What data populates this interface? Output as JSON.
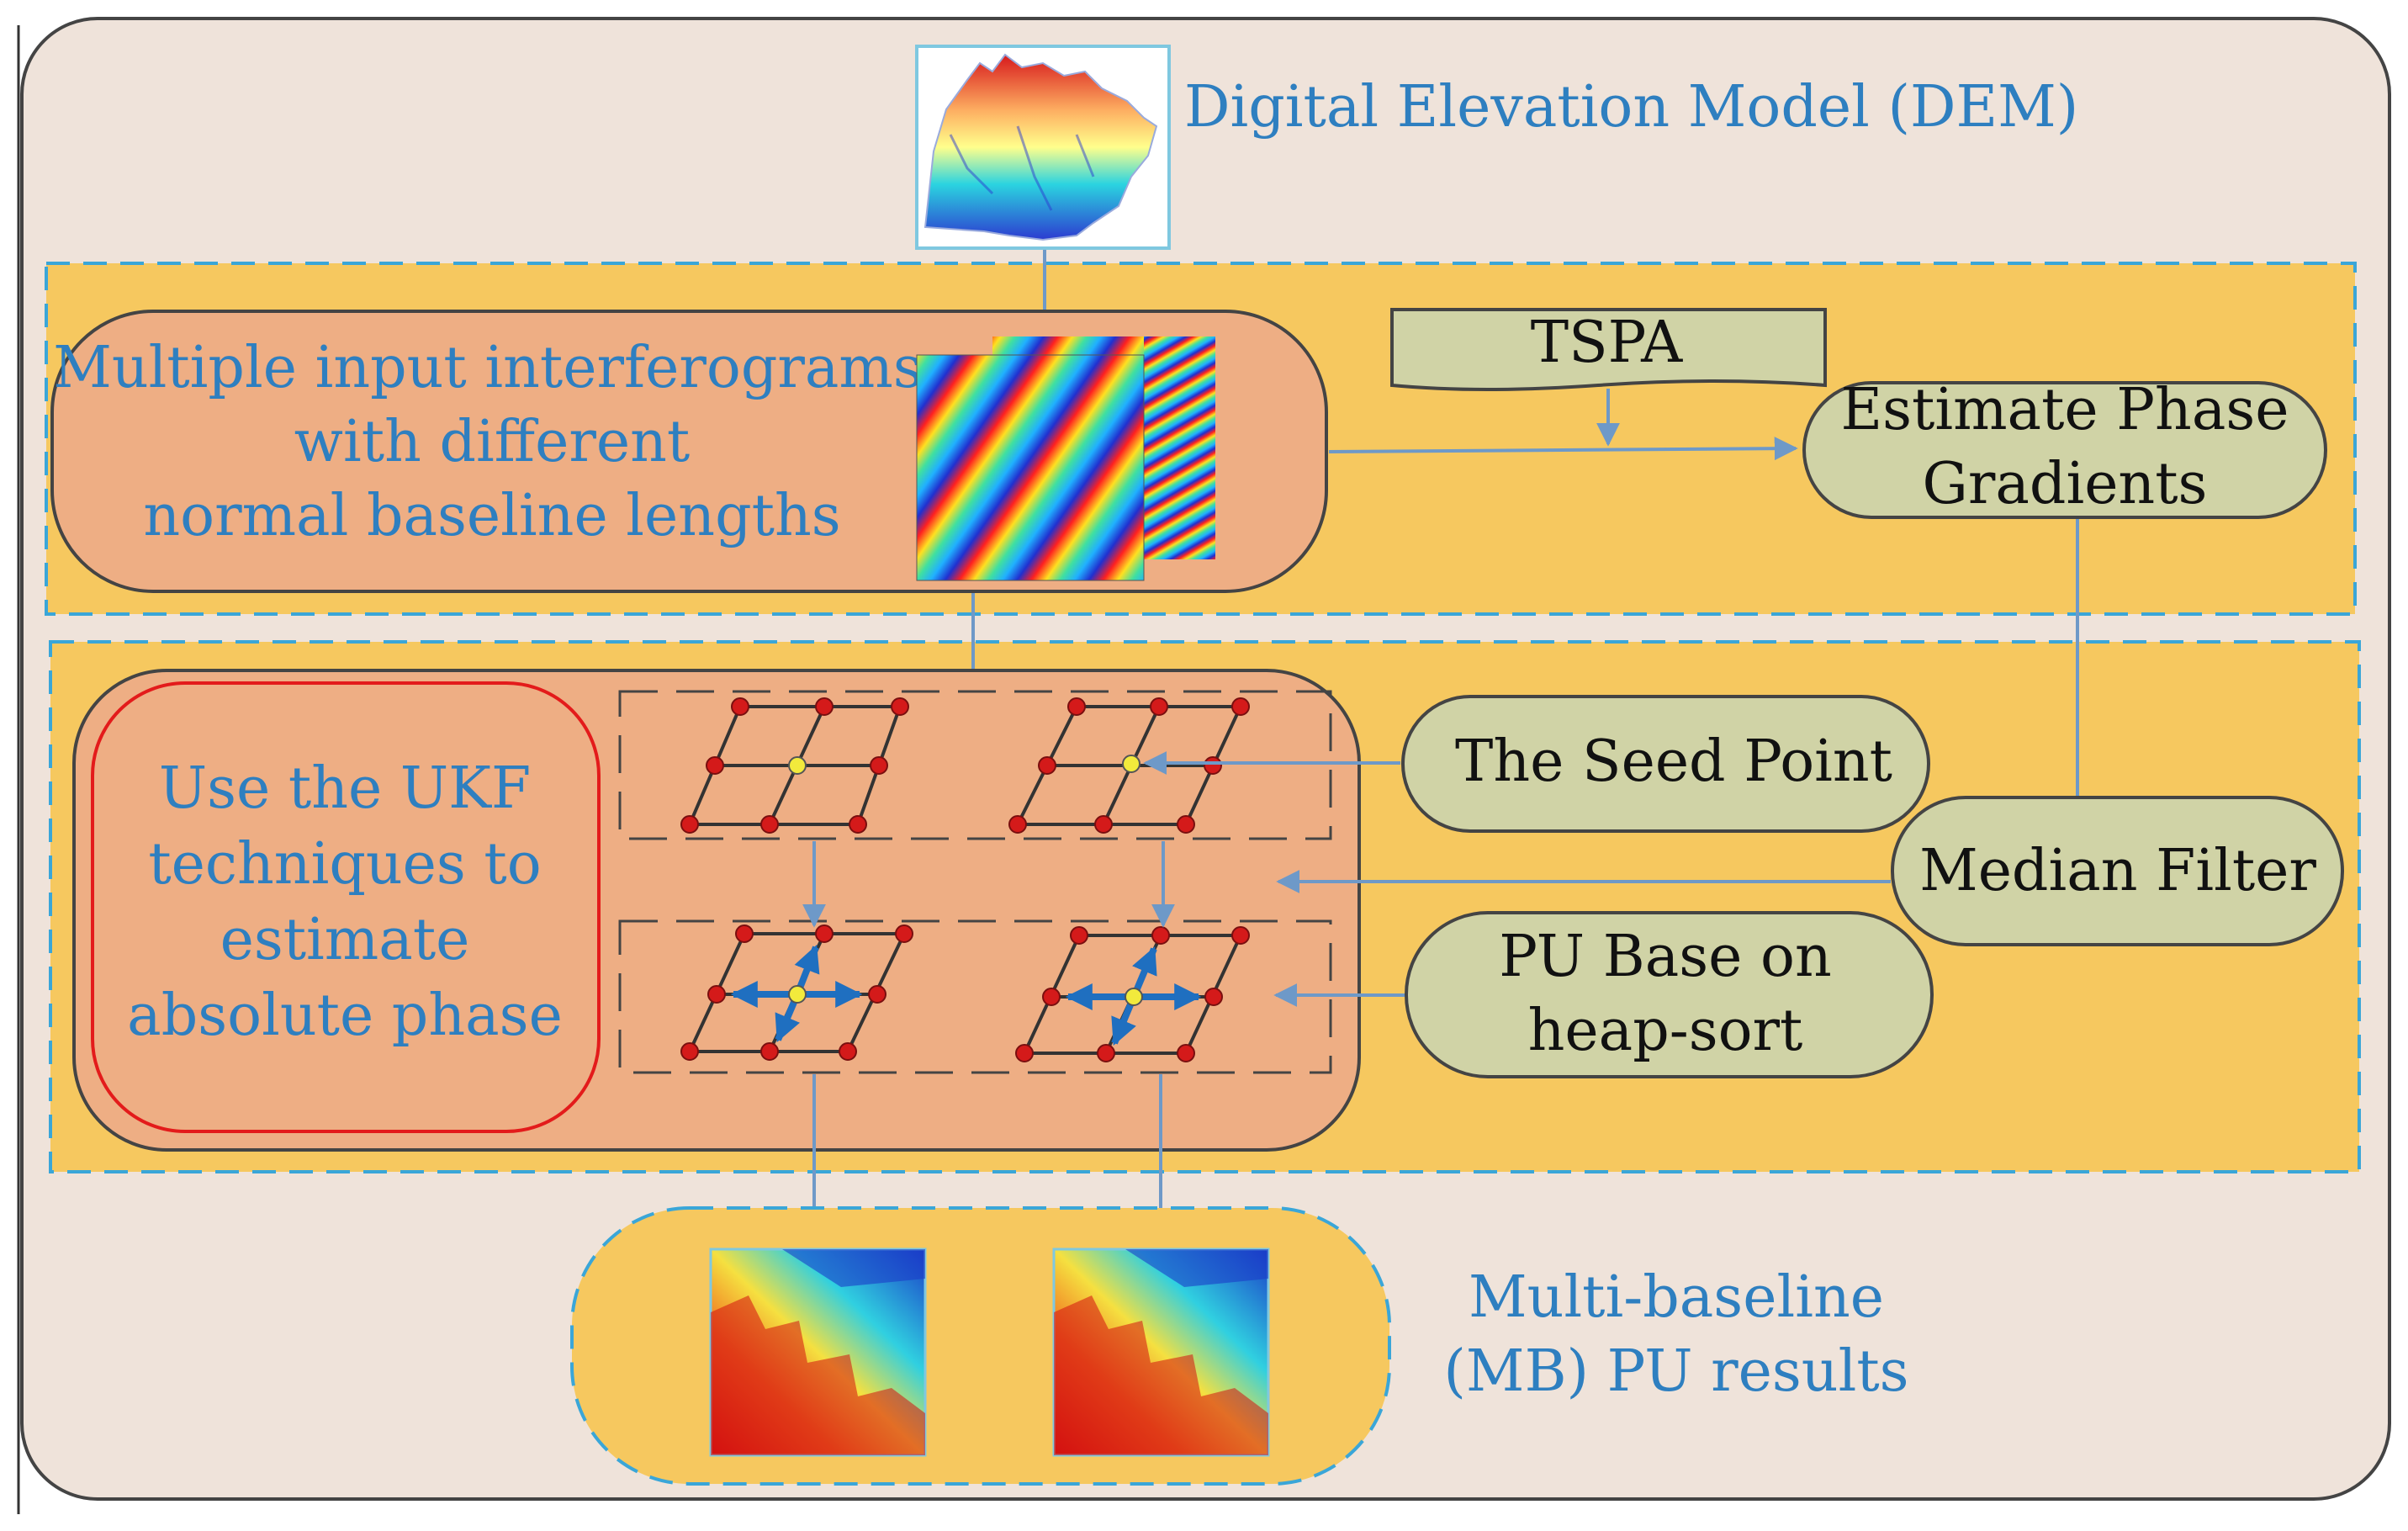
{
  "colors": {
    "outer_background": "#efe3da",
    "band_background": "#f6c85f",
    "salmon_panel": "#eeae84",
    "green_node": "#d0d3a6",
    "blue_text": "#2e7fc0",
    "arrow": "#6e99c8",
    "red_border": "#e31b1b",
    "grid_node": "#d41a1a",
    "seed_node": "#f2ea3c",
    "dashed_border": "#3aa6d8"
  },
  "dem": {
    "label": "Digital Elevation Model (DEM)",
    "icon": "dem-3d-terrain-icon"
  },
  "interferograms": {
    "line1": "Multiple input interferograms",
    "line2": "with different",
    "line3": "normal baseline lengths",
    "icon": "interferogram-fringe-icon"
  },
  "tspa": {
    "label": "TSPA"
  },
  "phase_gradients": {
    "line1": "Estimate Phase",
    "line2": "Gradients"
  },
  "ukf": {
    "line1": "Use the UKF",
    "line2": "techniques to",
    "line3": "estimate",
    "line4": "absolute phase"
  },
  "seed_point": {
    "label": "The Seed Point"
  },
  "median_filter": {
    "label": "Median Filter"
  },
  "pu_heap": {
    "line1": "PU Base on",
    "line2": "heap-sort"
  },
  "results": {
    "line1": "Multi-baseline",
    "line2": "(MB) PU results",
    "icon": "unwrapped-phase-map-icon"
  }
}
